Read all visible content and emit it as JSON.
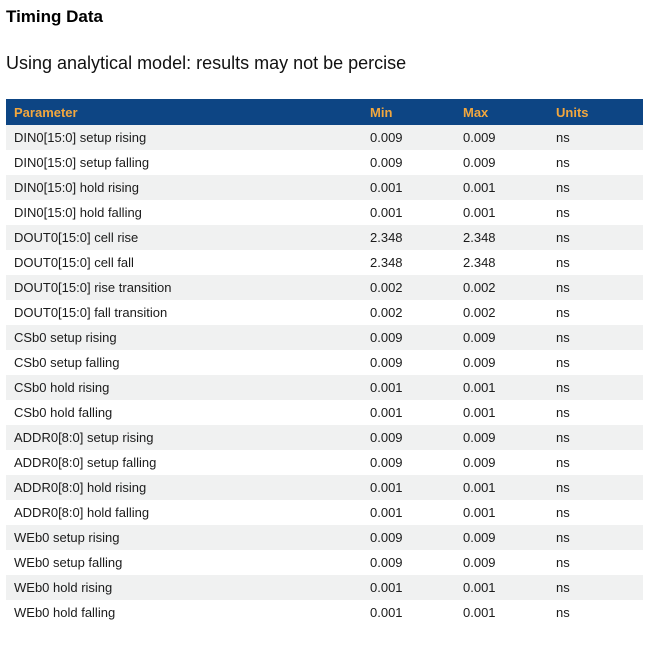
{
  "page": {
    "title": "Timing Data",
    "subtitle": "Using analytical model: results may not be percise"
  },
  "table": {
    "columns": [
      "Parameter",
      "Min",
      "Max",
      "Units"
    ],
    "rows": [
      {
        "parameter": "DIN0[15:0] setup rising",
        "min": "0.009",
        "max": "0.009",
        "units": "ns"
      },
      {
        "parameter": "DIN0[15:0] setup falling",
        "min": "0.009",
        "max": "0.009",
        "units": "ns"
      },
      {
        "parameter": "DIN0[15:0] hold rising",
        "min": "0.001",
        "max": "0.001",
        "units": "ns"
      },
      {
        "parameter": "DIN0[15:0] hold falling",
        "min": "0.001",
        "max": "0.001",
        "units": "ns"
      },
      {
        "parameter": "DOUT0[15:0] cell rise",
        "min": "2.348",
        "max": "2.348",
        "units": "ns"
      },
      {
        "parameter": "DOUT0[15:0] cell fall",
        "min": "2.348",
        "max": "2.348",
        "units": "ns"
      },
      {
        "parameter": "DOUT0[15:0] rise transition",
        "min": "0.002",
        "max": "0.002",
        "units": "ns"
      },
      {
        "parameter": "DOUT0[15:0] fall transition",
        "min": "0.002",
        "max": "0.002",
        "units": "ns"
      },
      {
        "parameter": "CSb0 setup rising",
        "min": "0.009",
        "max": "0.009",
        "units": "ns"
      },
      {
        "parameter": "CSb0 setup falling",
        "min": "0.009",
        "max": "0.009",
        "units": "ns"
      },
      {
        "parameter": "CSb0 hold rising",
        "min": "0.001",
        "max": "0.001",
        "units": "ns"
      },
      {
        "parameter": "CSb0 hold falling",
        "min": "0.001",
        "max": "0.001",
        "units": "ns"
      },
      {
        "parameter": "ADDR0[8:0] setup rising",
        "min": "0.009",
        "max": "0.009",
        "units": "ns"
      },
      {
        "parameter": "ADDR0[8:0] setup falling",
        "min": "0.009",
        "max": "0.009",
        "units": "ns"
      },
      {
        "parameter": "ADDR0[8:0] hold rising",
        "min": "0.001",
        "max": "0.001",
        "units": "ns"
      },
      {
        "parameter": "ADDR0[8:0] hold falling",
        "min": "0.001",
        "max": "0.001",
        "units": "ns"
      },
      {
        "parameter": "WEb0 setup rising",
        "min": "0.009",
        "max": "0.009",
        "units": "ns"
      },
      {
        "parameter": "WEb0 setup falling",
        "min": "0.009",
        "max": "0.009",
        "units": "ns"
      },
      {
        "parameter": "WEb0 hold rising",
        "min": "0.001",
        "max": "0.001",
        "units": "ns"
      },
      {
        "parameter": "WEb0 hold falling",
        "min": "0.001",
        "max": "0.001",
        "units": "ns"
      }
    ]
  },
  "colors": {
    "header_bg": "#0D4584",
    "header_text": "#F2A73E",
    "row_alt_bg": "#F0F1F1",
    "row_text": "#1B1B1B"
  }
}
